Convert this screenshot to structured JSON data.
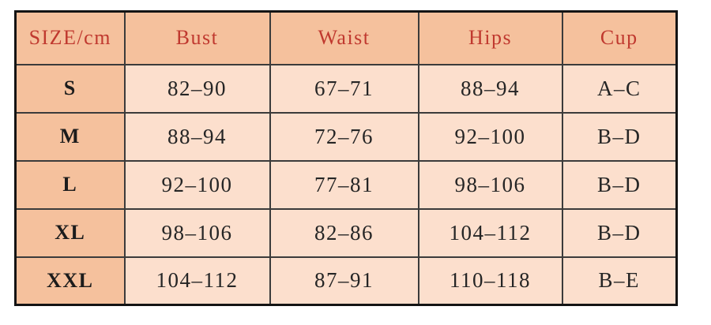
{
  "page": {
    "background_color": "#ffffff"
  },
  "colors": {
    "page_bg": "#ffffff",
    "header_bg": "#f5c19d",
    "size_col_bg": "#f5c19d",
    "cell_bg": "#fcdfcd",
    "header_text": "#c0392f",
    "cell_text": "#252525",
    "border_outer": "#141414",
    "border_inner": "#3b3b3b"
  },
  "chart_data": {
    "type": "table",
    "unit_label": "cm",
    "columns": [
      "SIZE/cm",
      "Bust",
      "Waist",
      "Hips",
      "Cup"
    ],
    "rows": [
      [
        "S",
        "82–90",
        "67–71",
        "88–94",
        "A–C"
      ],
      [
        "M",
        "88–94",
        "72–76",
        "92–100",
        "B–D"
      ],
      [
        "L",
        "92–100",
        "77–81",
        "98–106",
        "B–D"
      ],
      [
        "XL",
        "98–106",
        "82–86",
        "104–112",
        "B–D"
      ],
      [
        "XXL",
        "104–112",
        "87–91",
        "110–118",
        "B–E"
      ]
    ]
  }
}
